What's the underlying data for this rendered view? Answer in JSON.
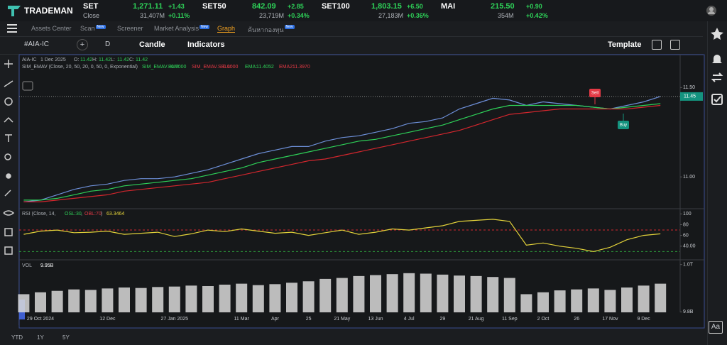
{
  "header": {
    "logo": "TRADEMAN",
    "tickers": [
      {
        "name": "SET",
        "price": "1,271.11",
        "change": "+1.43",
        "sub": "Close",
        "volume": "31,407M",
        "pct": "+0.11%"
      },
      {
        "name": "SET50",
        "price": "842.09",
        "change": "+2.85",
        "volume": "23,719M",
        "pct": "+0.34%"
      },
      {
        "name": "SET100",
        "price": "1,803.15",
        "change": "+6.50",
        "volume": "27,183M",
        "pct": "+0.36%"
      },
      {
        "name": "MAI",
        "price": "215.50",
        "change": "+0.90",
        "volume": "354M",
        "pct": "+0.42%"
      }
    ]
  },
  "nav": {
    "items": [
      "Assets Center",
      "Scan",
      "Screener",
      "Market Analysis",
      "Graph",
      "ค้นหากองทุน"
    ],
    "badge": "New"
  },
  "toolbar": {
    "symbol": "#AIA-IC",
    "interval": "D",
    "chart_type": "Candle",
    "indicators": "Indicators",
    "template": "Template"
  },
  "chart_legend": {
    "symbol": "AIA-IC",
    "date": "1 Dec 2025",
    "ohlc": [
      {
        "label": "O:",
        "value": "11.42"
      },
      {
        "label": "H:",
        "value": "11.42"
      },
      {
        "label": "L:",
        "value": "11.42"
      },
      {
        "label": "C:",
        "value": "11.42"
      }
    ],
    "indicator": "SIM_EMAV (Close, 20, 50, 20, 0, 50, 0, Exponential)",
    "indicator_values": [
      {
        "label": "SIM_EMAV.BUY:",
        "value": "0.0000"
      },
      {
        "label": "SIM_EMAV.SELL:",
        "value": "0.0000"
      },
      {
        "label": "EMA:",
        "value": "11.4052"
      },
      {
        "label": "EMA2:",
        "value": "11.3970"
      }
    ],
    "rsi_title": [
      "RSI (Close, 14, ",
      "OSL:30",
      ", ",
      "OBL:70",
      ")"
    ],
    "rsi_value": "63.3464",
    "vol_title": "VOL",
    "vol_value": "9.95B"
  },
  "footer": {
    "ranges": [
      "YTD",
      "1Y",
      "5Y"
    ]
  },
  "chart_data": [
    {
      "type": "line",
      "ylim": [
        10.83,
        11.68
      ],
      "yticks": [
        {
          "value": 11.5,
          "label": "11.50"
        },
        {
          "value": 11,
          "label": "11.00"
        }
      ],
      "price_tag": {
        "value": 11.45,
        "label": "11.45"
      },
      "annotations": [
        {
          "text": "Sell",
          "color": "#e53945"
        },
        {
          "text": "Buy",
          "color": "#14937f"
        }
      ],
      "series": [
        {
          "name": "AIA-IC",
          "color": "#6d8fd8",
          "values": [
            10.86,
            10.87,
            10.9,
            10.93,
            10.95,
            10.96,
            10.98,
            10.99,
            10.99,
            11.0,
            11.02,
            11.04,
            11.07,
            11.1,
            11.13,
            11.15,
            11.17,
            11.17,
            11.2,
            11.22,
            11.23,
            11.25,
            11.27,
            11.3,
            11.31,
            11.33,
            11.38,
            11.41,
            11.44,
            11.43,
            11.4,
            11.42,
            11.41,
            11.4,
            11.39,
            11.38,
            11.4,
            11.42,
            11.45
          ]
        },
        {
          "name": "EMA",
          "color": "#2ed158",
          "values": [
            10.87,
            10.87,
            10.88,
            10.9,
            10.92,
            10.93,
            10.95,
            10.96,
            10.97,
            10.98,
            10.99,
            11.01,
            11.03,
            11.05,
            11.08,
            11.1,
            11.12,
            11.14,
            11.16,
            11.18,
            11.2,
            11.21,
            11.23,
            11.25,
            11.27,
            11.29,
            11.32,
            11.35,
            11.38,
            11.4,
            11.4,
            11.4,
            11.4,
            11.4,
            11.39,
            11.38,
            11.39,
            11.4,
            11.41
          ]
        },
        {
          "name": "EMA2",
          "color": "#d3262d",
          "values": [
            10.86,
            10.86,
            10.87,
            10.88,
            10.89,
            10.9,
            10.92,
            10.93,
            10.94,
            10.95,
            10.96,
            10.97,
            10.99,
            11.01,
            11.03,
            11.05,
            11.07,
            11.09,
            11.1,
            11.12,
            11.14,
            11.16,
            11.18,
            11.2,
            11.22,
            11.24,
            11.26,
            11.29,
            11.32,
            11.35,
            11.36,
            11.37,
            11.38,
            11.38,
            11.38,
            11.38,
            11.38,
            11.39,
            11.4
          ]
        }
      ]
    },
    {
      "type": "line",
      "ylim": [
        16,
        107
      ],
      "yticks": [
        100,
        80,
        60,
        {
          "value": 40,
          "label": "40.00"
        }
      ],
      "bands": [
        {
          "value": 70,
          "color": "#d3262d"
        },
        {
          "value": 30,
          "color": "#2e9d3a"
        }
      ],
      "series": [
        {
          "name": "RSI",
          "color": "#e3d23a",
          "values": [
            62,
            68,
            70,
            65,
            66,
            68,
            62,
            64,
            66,
            58,
            63,
            70,
            67,
            72,
            68,
            64,
            66,
            60,
            65,
            70,
            62,
            66,
            72,
            70,
            74,
            78,
            86,
            88,
            90,
            86,
            42,
            46,
            40,
            36,
            30,
            38,
            52,
            60,
            63
          ]
        }
      ]
    },
    {
      "type": "bar",
      "ylim": [
        0,
        1070
      ],
      "yticks": [
        {
          "value": 1000,
          "label": "1.0T"
        },
        {
          "value": 9.8,
          "label": "9.8B"
        }
      ],
      "color": "#d9d9d9",
      "categories": [
        null,
        "29 Oct 2024",
        null,
        null,
        null,
        "12 Dec",
        null,
        null,
        null,
        "27 Jan 2025",
        null,
        null,
        null,
        "11 Mar",
        null,
        "Apr",
        null,
        "25",
        null,
        "21 May",
        null,
        "13 Jun",
        null,
        "4 Jul",
        null,
        "29",
        null,
        "21 Aug",
        null,
        "11 Sep",
        null,
        "2 Oct",
        null,
        "26",
        null,
        "17 Nov",
        null,
        "9 Dec",
        null
      ],
      "values": [
        380,
        420,
        450,
        480,
        470,
        500,
        520,
        510,
        530,
        540,
        560,
        550,
        580,
        600,
        570,
        590,
        620,
        650,
        700,
        720,
        760,
        780,
        800,
        820,
        810,
        790,
        770,
        760,
        740,
        720,
        380,
        420,
        460,
        480,
        500,
        470,
        520,
        560,
        600
      ]
    }
  ]
}
